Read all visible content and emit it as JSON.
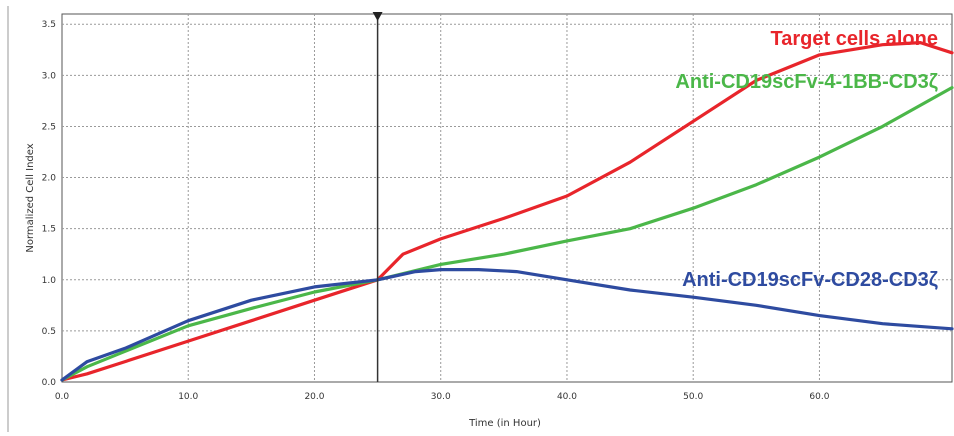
{
  "chart_data": {
    "type": "line",
    "xlabel": "Time (in Hour)",
    "ylabel": "Normalized Cell Index",
    "xlim": [
      0,
      70.5
    ],
    "ylim": [
      0,
      3.6
    ],
    "x_ticks": [
      0,
      10,
      20,
      30,
      40,
      50,
      60
    ],
    "x_tick_labels": [
      "0.0",
      "10.0",
      "20.0",
      "30.0",
      "40.0",
      "50.0",
      "60.0"
    ],
    "y_ticks": [
      0,
      0.5,
      1.0,
      1.5,
      2.0,
      2.5,
      3.0,
      3.5
    ],
    "y_tick_labels": [
      "0.0",
      "0.5",
      "1.0",
      "1.5",
      "2.0",
      "2.5",
      "3.0",
      "3.5"
    ],
    "grid": true,
    "vertical_marker_x": 25,
    "legend_placement": "inline labels",
    "series": [
      {
        "name": "Target cells alone",
        "color": "#e8252b",
        "x": [
          0,
          2,
          5,
          10,
          15,
          20,
          25,
          27,
          30,
          35,
          40,
          45,
          50,
          55,
          60,
          65,
          68,
          70.5
        ],
        "y": [
          0.02,
          0.08,
          0.2,
          0.4,
          0.6,
          0.8,
          1.0,
          1.25,
          1.4,
          1.6,
          1.82,
          2.15,
          2.55,
          2.95,
          3.2,
          3.3,
          3.32,
          3.22
        ]
      },
      {
        "name": "Anti-CD19scFv-4-1BB-CD3ζ",
        "color": "#4bb749",
        "x": [
          0,
          2,
          5,
          10,
          15,
          20,
          25,
          30,
          35,
          40,
          45,
          50,
          55,
          60,
          65,
          70.5
        ],
        "y": [
          0.02,
          0.15,
          0.3,
          0.55,
          0.72,
          0.88,
          1.0,
          1.15,
          1.25,
          1.38,
          1.5,
          1.7,
          1.93,
          2.2,
          2.5,
          2.88
        ]
      },
      {
        "name": "Anti-CD19scFv-CD28-CD3ζ",
        "color": "#2e4ba0",
        "x": [
          0,
          2,
          5,
          10,
          15,
          20,
          25,
          28,
          30,
          33,
          36,
          40,
          45,
          50,
          55,
          60,
          65,
          70.5
        ],
        "y": [
          0.02,
          0.2,
          0.33,
          0.6,
          0.8,
          0.93,
          1.0,
          1.08,
          1.1,
          1.1,
          1.08,
          1.0,
          0.9,
          0.83,
          0.75,
          0.65,
          0.57,
          0.52
        ]
      }
    ]
  }
}
